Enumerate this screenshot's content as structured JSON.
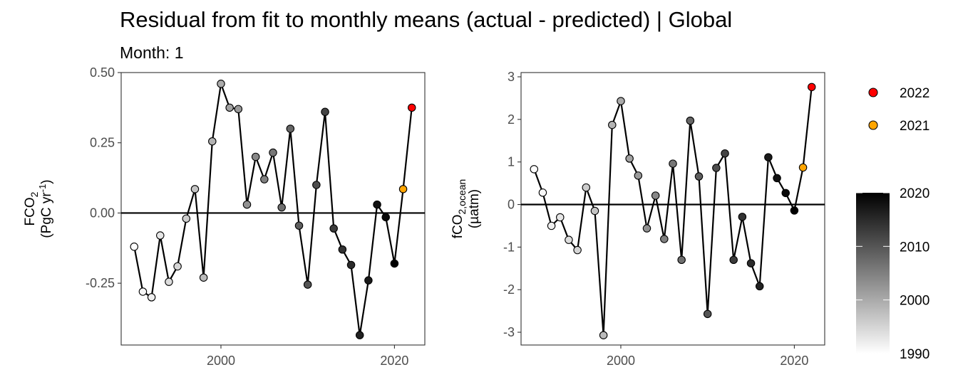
{
  "title": "Residual from fit to monthly means (actual - predicted) | Global",
  "subtitle": "Month: 1",
  "colors": {
    "highlight_2022": "#ff0000",
    "highlight_2021": "#ffa500",
    "gradient_low": "#ffffff",
    "gradient_high": "#000000",
    "line": "#000000",
    "zero_line": "#000000"
  },
  "legend": {
    "position": "right",
    "discrete": [
      {
        "label": "2022",
        "color": "#ff0000"
      },
      {
        "label": "2021",
        "color": "#ffa500"
      }
    ],
    "colorbar": {
      "ticks": [
        "2020",
        "2010",
        "2000",
        "1990"
      ],
      "min": 1990,
      "max": 2020
    }
  },
  "chart_data": [
    {
      "type": "line",
      "ylabel_main": "FCO",
      "ylabel_main_sub": "2",
      "ylabel_units_pre": "(PgC yr",
      "ylabel_units_sup": "-1",
      "ylabel_units_post": ")",
      "xlim": [
        1988.5,
        2023.5
      ],
      "ylim": [
        -0.47,
        0.5
      ],
      "xticks": [
        2000,
        2020
      ],
      "xtick_labels": [
        "2000",
        "2020"
      ],
      "yticks": [
        0.5,
        0.25,
        0.0,
        -0.25
      ],
      "ytick_labels": [
        "0.50",
        "0.25",
        "0.00",
        "-0.25"
      ],
      "zero_line": 0,
      "x": [
        1990,
        1991,
        1992,
        1993,
        1994,
        1995,
        1996,
        1997,
        1998,
        1999,
        2000,
        2001,
        2002,
        2003,
        2004,
        2005,
        2006,
        2007,
        2008,
        2009,
        2010,
        2011,
        2012,
        2013,
        2014,
        2015,
        2016,
        2017,
        2018,
        2019,
        2020,
        2021,
        2022
      ],
      "y": [
        -0.12,
        -0.28,
        -0.3,
        -0.08,
        -0.245,
        -0.19,
        -0.02,
        0.085,
        -0.23,
        0.255,
        0.46,
        0.375,
        0.37,
        0.03,
        0.2,
        0.12,
        0.215,
        0.02,
        0.3,
        -0.045,
        -0.255,
        0.1,
        0.36,
        -0.055,
        -0.13,
        -0.185,
        -0.435,
        -0.24,
        0.03,
        -0.015,
        -0.18,
        0.085,
        0.375
      ]
    },
    {
      "type": "line",
      "ylabel_main": "fCO",
      "ylabel_main_sub": "2,ocean",
      "ylabel_units_pre": "(µatm)",
      "ylabel_units_sup": "",
      "ylabel_units_post": "",
      "xlim": [
        1988.5,
        2023.5
      ],
      "ylim": [
        -3.3,
        3.1
      ],
      "xticks": [
        2000,
        2020
      ],
      "xtick_labels": [
        "2000",
        "2020"
      ],
      "yticks": [
        3,
        2,
        1,
        0,
        -1,
        -2,
        -3
      ],
      "ytick_labels": [
        "3",
        "2",
        "1",
        "0",
        "-1",
        "-2",
        "-3"
      ],
      "zero_line": 0,
      "x": [
        1990,
        1991,
        1992,
        1993,
        1994,
        1995,
        1996,
        1997,
        1998,
        1999,
        2000,
        2001,
        2002,
        2003,
        2004,
        2005,
        2006,
        2007,
        2008,
        2009,
        2010,
        2011,
        2012,
        2013,
        2014,
        2015,
        2016,
        2017,
        2018,
        2019,
        2020,
        2021,
        2022
      ],
      "y": [
        0.83,
        0.28,
        -0.5,
        -0.3,
        -0.83,
        -1.07,
        0.4,
        -0.15,
        -3.07,
        1.87,
        2.43,
        1.08,
        0.68,
        -0.56,
        0.21,
        -0.81,
        0.96,
        -1.3,
        1.97,
        0.66,
        -2.57,
        0.86,
        1.2,
        -1.3,
        -0.29,
        -1.38,
        -1.92,
        1.11,
        0.62,
        0.27,
        -0.14,
        0.87,
        2.76
      ]
    }
  ]
}
